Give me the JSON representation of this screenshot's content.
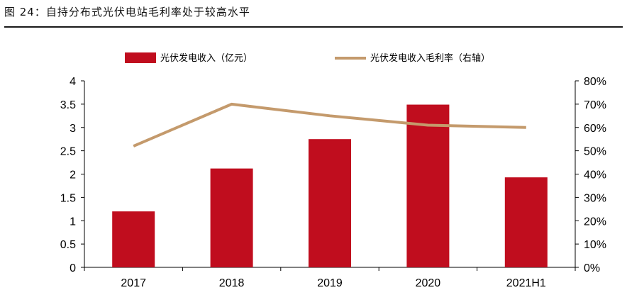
{
  "figure": {
    "title": "图 24：自持分布式光伏电站毛利率处于较高水平"
  },
  "chart_data": {
    "type": "bar",
    "categories": [
      "2017",
      "2018",
      "2019",
      "2020",
      "2021H1"
    ],
    "series": [
      {
        "name": "光伏发电收入（亿元）",
        "type": "bar",
        "axis": "left",
        "values": [
          1.2,
          2.12,
          2.75,
          3.49,
          1.93
        ],
        "color": "#c00d1e"
      },
      {
        "name": "光伏发电收入毛利率（右轴）",
        "type": "line",
        "axis": "right",
        "values": [
          0.52,
          0.7,
          0.65,
          0.61,
          0.6
        ],
        "color": "#c49a6c"
      }
    ],
    "y_left": {
      "lim": [
        0,
        4
      ],
      "ticks": [
        "0",
        "0.5",
        "1",
        "1.5",
        "2",
        "2.5",
        "3",
        "3.5",
        "4"
      ]
    },
    "y_right": {
      "lim": [
        0,
        0.8
      ],
      "ticks": [
        "0%",
        "10%",
        "20%",
        "30%",
        "40%",
        "50%",
        "60%",
        "70%",
        "80%"
      ]
    },
    "grid": false,
    "legend_position": "top"
  }
}
